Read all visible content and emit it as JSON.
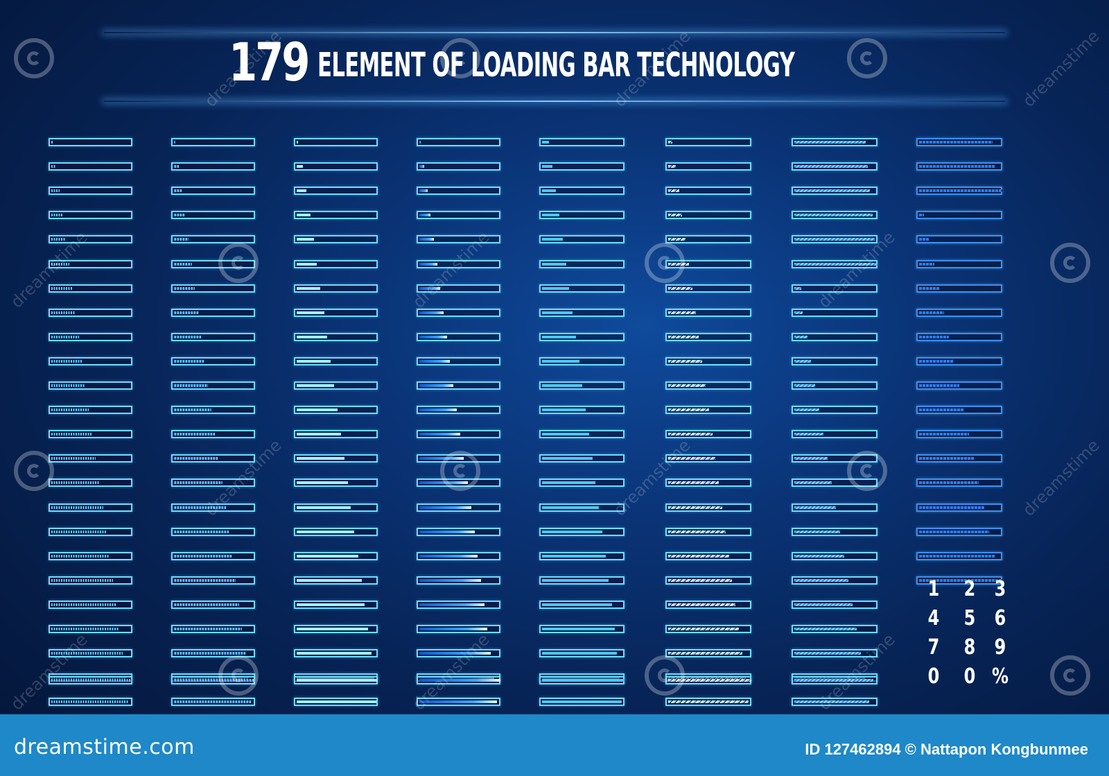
{
  "header": {
    "title_number": "179",
    "title_text": "ELEMENT OF LOADING BAR TECHNOLOGY"
  },
  "loading_bars": {
    "columns": [
      {
        "style": "segmented-blue",
        "levels": [
          0.02,
          0.06,
          0.1,
          0.14,
          0.18,
          0.22,
          0.26,
          0.3,
          0.34,
          0.38,
          0.42,
          0.46,
          0.5,
          0.55,
          0.6,
          0.64,
          0.68,
          0.72,
          0.76,
          0.8,
          0.84,
          0.88,
          0.92,
          0.96,
          1.0
        ]
      },
      {
        "style": "segmented-moving",
        "levels": [
          0.02,
          0.06,
          0.1,
          0.14,
          0.18,
          0.22,
          0.26,
          0.3,
          0.34,
          0.38,
          0.42,
          0.46,
          0.5,
          0.55,
          0.6,
          0.64,
          0.68,
          0.72,
          0.76,
          0.8,
          0.84,
          0.88,
          0.92,
          0.96,
          1.0
        ]
      },
      {
        "style": "solid-light",
        "levels": [
          0.02,
          0.08,
          0.12,
          0.17,
          0.21,
          0.25,
          0.29,
          0.34,
          0.38,
          0.42,
          0.46,
          0.5,
          0.55,
          0.59,
          0.63,
          0.67,
          0.71,
          0.76,
          0.8,
          0.84,
          0.88,
          0.92,
          0.96,
          0.98,
          1.0
        ]
      },
      {
        "style": "gradient-glow",
        "levels": [
          0.02,
          0.06,
          0.1,
          0.14,
          0.18,
          0.22,
          0.26,
          0.3,
          0.34,
          0.38,
          0.42,
          0.46,
          0.5,
          0.55,
          0.6,
          0.64,
          0.68,
          0.72,
          0.76,
          0.8,
          0.84,
          0.88,
          0.92,
          0.96,
          1.0
        ]
      },
      {
        "style": "solid-cyan",
        "levels": [
          0.08,
          0.13,
          0.17,
          0.21,
          0.25,
          0.29,
          0.33,
          0.37,
          0.41,
          0.45,
          0.49,
          0.53,
          0.57,
          0.61,
          0.65,
          0.69,
          0.73,
          0.77,
          0.81,
          0.85,
          0.88,
          0.91,
          0.94,
          0.97,
          1.0
        ]
      },
      {
        "style": "chevron-white",
        "levels": [
          0.05,
          0.09,
          0.13,
          0.17,
          0.21,
          0.25,
          0.29,
          0.33,
          0.37,
          0.41,
          0.45,
          0.49,
          0.53,
          0.57,
          0.61,
          0.65,
          0.69,
          0.73,
          0.77,
          0.81,
          0.85,
          0.89,
          0.93,
          0.97,
          1.0
        ]
      },
      {
        "style": "striped-cyan",
        "levels": [
          0.86,
          0.88,
          0.91,
          0.94,
          0.97,
          1.0,
          0.08,
          0.1,
          0.16,
          0.2,
          0.25,
          0.3,
          0.35,
          0.4,
          0.45,
          0.5,
          0.55,
          0.6,
          0.65,
          0.7,
          0.75,
          0.8,
          0.85,
          0.9,
          0.95
        ]
      },
      {
        "style": "blocks-blue",
        "levels": [
          0.88,
          0.92,
          1.0,
          0.06,
          0.12,
          0.18,
          0.24,
          0.3,
          0.36,
          0.42,
          0.48,
          0.54,
          0.6,
          0.66,
          0.72,
          0.78,
          0.84,
          0.92,
          1.0
        ]
      }
    ]
  },
  "numpad": {
    "keys": [
      "1",
      "2",
      "3",
      "4",
      "5",
      "6",
      "7",
      "8",
      "9",
      "0",
      "0",
      "%"
    ]
  },
  "watermark": {
    "text": "dreamstime"
  },
  "footer": {
    "logo": "dreamstime.com",
    "credit": "ID 127462894 © Nattapon Kongbunmee"
  },
  "colors": {
    "background": "#072457",
    "bar_border": "#6fdcff",
    "footer": "#1e88c9"
  }
}
